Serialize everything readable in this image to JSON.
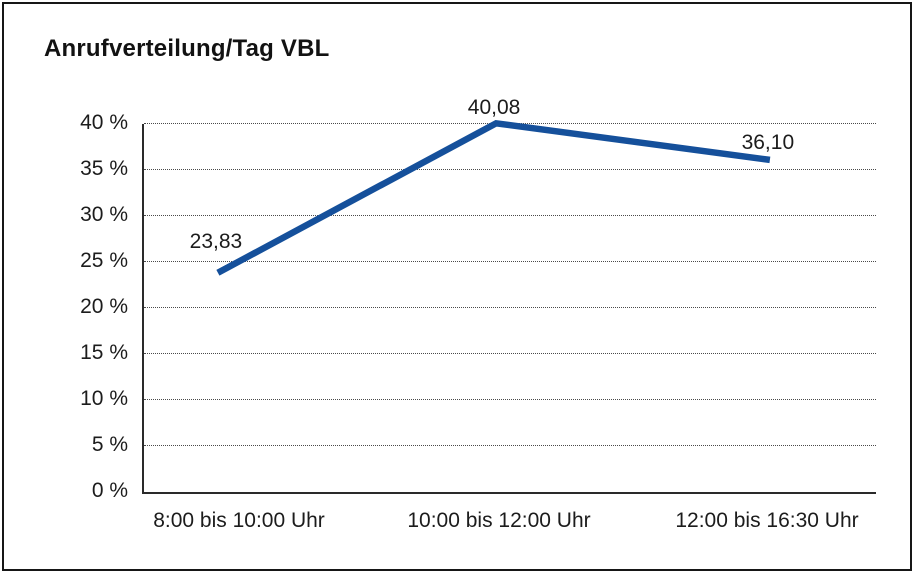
{
  "chart_data": {
    "type": "line",
    "title": "Anrufverteilung/Tag VBL",
    "categories": [
      "8:00 bis 10:00 Uhr",
      "10:00 bis 12:00 Uhr",
      "12:00 bis 16:30 Uhr"
    ],
    "series": [
      {
        "name": "Anrufverteilung",
        "values": [
          23.83,
          40.08,
          36.1
        ]
      }
    ],
    "value_labels": [
      "23,83",
      "40,08",
      "36,10"
    ],
    "y_ticks": [
      "0 %",
      "5 %",
      "10 %",
      "15 %",
      "20 %",
      "25 %",
      "30 %",
      "35 %",
      "40 %"
    ],
    "y_tick_values": [
      0,
      5,
      10,
      15,
      20,
      25,
      30,
      35,
      40
    ],
    "ylim": [
      0,
      40
    ],
    "xlabel": "",
    "ylabel": "",
    "grid": "horizontal-dotted",
    "legend": "none",
    "line_color": "#15509b",
    "text_color": "#1c1c1c"
  }
}
